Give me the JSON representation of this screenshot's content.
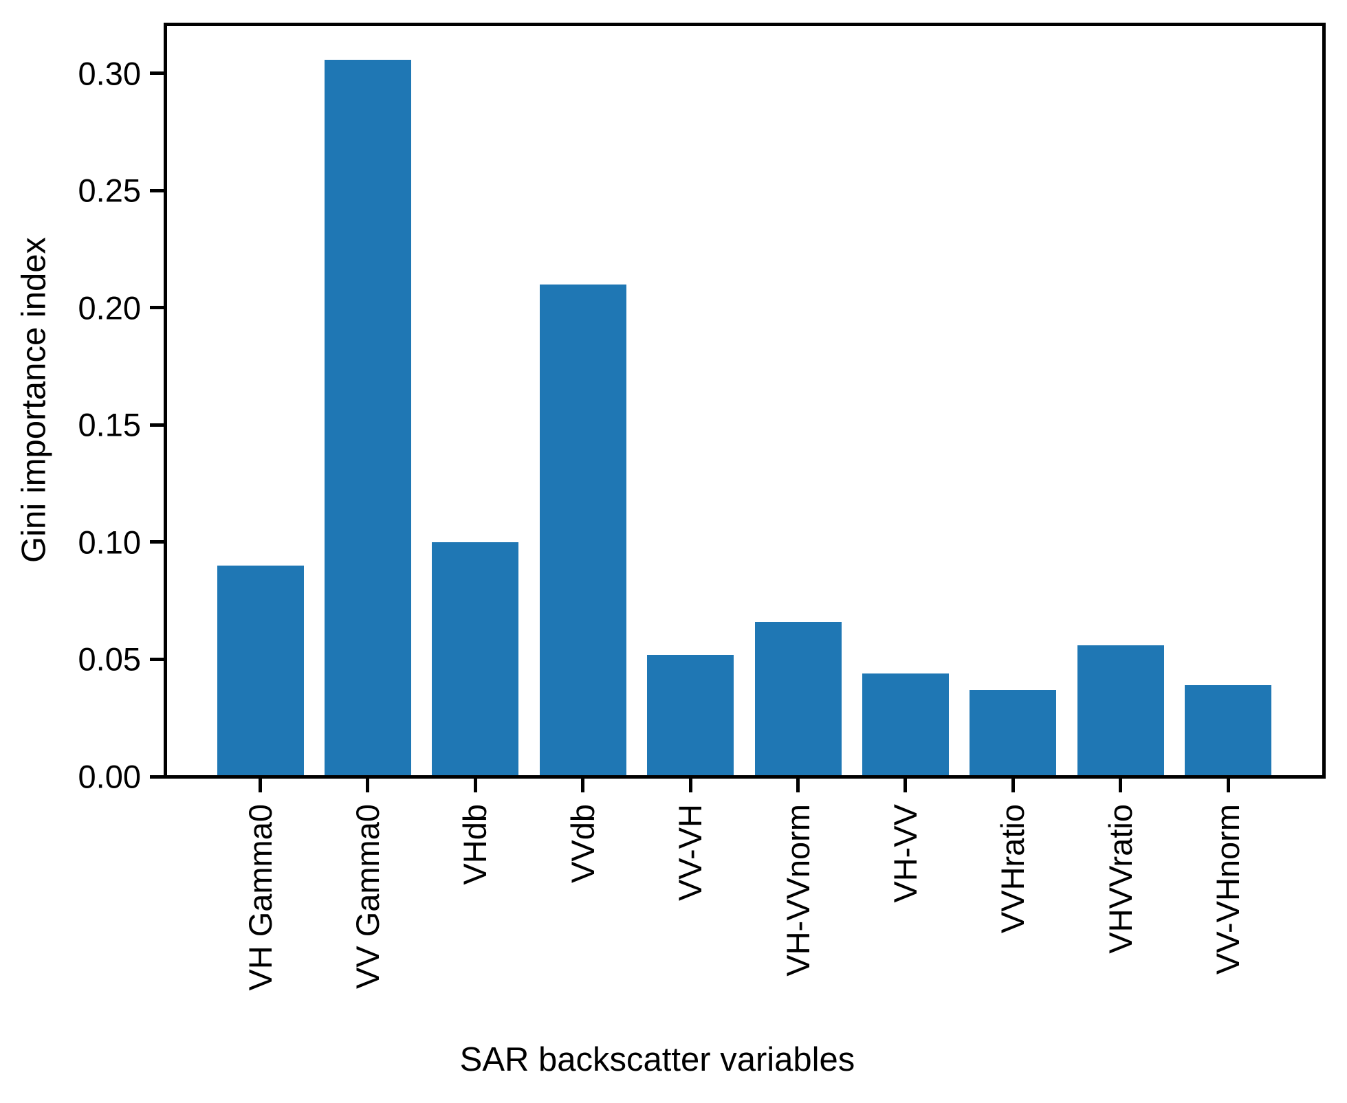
{
  "figure": {
    "background": "#ffffff",
    "frame_color": "#000000"
  },
  "chart_data": {
    "type": "bar",
    "title": "",
    "xlabel": "SAR backscatter variables",
    "ylabel": "Gini importance index",
    "categories": [
      "VH Gamma0",
      "VV Gamma0",
      "VHdb",
      "VVdb",
      "VV-VH",
      "VH-VVnorm",
      "VH-VV",
      "VVHratio",
      "VHVVratio",
      "VV-VHnorm"
    ],
    "values": [
      0.09,
      0.306,
      0.1,
      0.21,
      0.052,
      0.066,
      0.044,
      0.037,
      0.056,
      0.039
    ],
    "bar_color": "#1f77b4",
    "ylim": [
      0,
      0.3211
    ],
    "yticks": [
      0.0,
      0.05,
      0.1,
      0.15,
      0.2,
      0.25,
      0.3
    ],
    "ytick_labels": [
      "0.00",
      "0.05",
      "0.10",
      "0.15",
      "0.20",
      "0.25",
      "0.30"
    ],
    "xtick_rotation_deg": 90,
    "grid": false,
    "legend": null
  }
}
